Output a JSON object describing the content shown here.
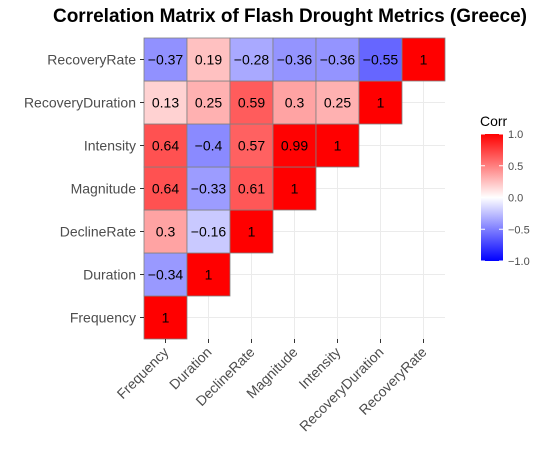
{
  "chart_data": {
    "type": "heatmap",
    "title": "Correlation Matrix of Flash Drought Metrics (Greece)",
    "variables": [
      "Frequency",
      "Duration",
      "DeclineRate",
      "Magnitude",
      "Intensity",
      "RecoveryDuration",
      "RecoveryRate"
    ],
    "lower_triangle_rows": [
      [
        1
      ],
      [
        -0.34,
        1
      ],
      [
        0.3,
        -0.16,
        1
      ],
      [
        0.64,
        -0.33,
        0.61,
        1
      ],
      [
        0.64,
        -0.4,
        0.57,
        0.99,
        1
      ],
      [
        0.13,
        0.25,
        0.59,
        0.3,
        0.25,
        1
      ],
      [
        -0.37,
        0.19,
        -0.28,
        -0.36,
        -0.36,
        -0.55,
        1
      ]
    ],
    "value_labels": [
      [
        "1"
      ],
      [
        "−0.34",
        "1"
      ],
      [
        "0.3",
        "−0.16",
        "1"
      ],
      [
        "0.64",
        "−0.33",
        "0.61",
        "1"
      ],
      [
        "0.64",
        "−0.4",
        "0.57",
        "0.99",
        "1"
      ],
      [
        "0.13",
        "0.25",
        "0.59",
        "0.3",
        "0.25",
        "1"
      ],
      [
        "−0.37",
        "0.19",
        "−0.28",
        "−0.36",
        "−0.36",
        "−0.55",
        "1"
      ]
    ],
    "legend": {
      "title": "Corr",
      "range": [
        -1,
        1
      ],
      "ticks": [
        1.0,
        0.5,
        0.0,
        -0.5,
        -1.0
      ],
      "tick_labels": [
        "1.0",
        "0.5",
        "0.0",
        "−0.5",
        "−1.0"
      ],
      "low_color": "#0000ff",
      "mid_color": "#ffffff",
      "high_color": "#ff0000"
    },
    "grid": true
  }
}
